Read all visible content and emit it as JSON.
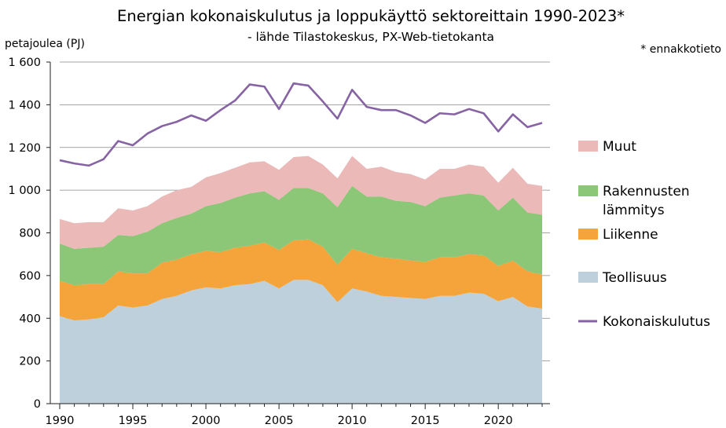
{
  "chart_data": {
    "type": "area",
    "title": "Energian kokonaiskulutus ja loppukäyttö sektoreittain 1990-2023*",
    "subtitle": "- lähde Tilastokeskus, PX-Web-tietokanta",
    "ylabel": "petajoulea (PJ)",
    "note": "* ennakkotieto",
    "ylim": [
      0,
      1600
    ],
    "xlim": [
      1990,
      2023
    ],
    "y_ticks": [
      "0",
      "200",
      "400",
      "600",
      "800",
      "1 000",
      "1 200",
      "1 400",
      "1 600"
    ],
    "y_tick_values": [
      0,
      200,
      400,
      600,
      800,
      1000,
      1200,
      1400,
      1600
    ],
    "x_ticks": [
      "1990",
      "1995",
      "2000",
      "2005",
      "2010",
      "2015",
      "2020"
    ],
    "x_tick_values": [
      1990,
      1995,
      2000,
      2005,
      2010,
      2015,
      2020
    ],
    "grid": true,
    "legend_position": "right",
    "x": [
      1990,
      1991,
      1992,
      1993,
      1994,
      1995,
      1996,
      1997,
      1998,
      1999,
      2000,
      2001,
      2002,
      2003,
      2004,
      2005,
      2006,
      2007,
      2008,
      2009,
      2010,
      2011,
      2012,
      2013,
      2014,
      2015,
      2016,
      2017,
      2018,
      2019,
      2020,
      2021,
      2022,
      2023
    ],
    "stacked_series": [
      {
        "name": "Teollisuus",
        "color": "#bdd0dc",
        "values": [
          410,
          390,
          395,
          405,
          460,
          450,
          460,
          490,
          505,
          530,
          545,
          540,
          555,
          560,
          575,
          540,
          580,
          580,
          555,
          475,
          540,
          525,
          505,
          500,
          495,
          490,
          505,
          505,
          520,
          515,
          480,
          500,
          455,
          445
        ]
      },
      {
        "name": "Liikenne",
        "color": "#f4a43a",
        "values": [
          165,
          165,
          165,
          155,
          160,
          160,
          150,
          170,
          170,
          170,
          170,
          170,
          175,
          180,
          180,
          180,
          185,
          190,
          180,
          175,
          185,
          180,
          180,
          180,
          175,
          175,
          180,
          180,
          180,
          180,
          165,
          170,
          165,
          160
        ]
      },
      {
        "name": "Rakennusten lämmitys",
        "color": "#8cc677",
        "values": [
          175,
          170,
          170,
          175,
          170,
          175,
          195,
          185,
          195,
          190,
          210,
          230,
          235,
          245,
          240,
          235,
          245,
          240,
          250,
          270,
          295,
          265,
          285,
          270,
          275,
          260,
          280,
          290,
          285,
          280,
          260,
          295,
          275,
          280
        ]
      },
      {
        "name": "Muut",
        "color": "#ebb9b7",
        "values": [
          115,
          120,
          120,
          115,
          125,
          120,
          120,
          125,
          130,
          125,
          135,
          140,
          140,
          145,
          140,
          140,
          145,
          150,
          135,
          135,
          140,
          130,
          140,
          135,
          130,
          125,
          135,
          125,
          135,
          135,
          130,
          140,
          135,
          135
        ]
      }
    ],
    "line_series": {
      "name": "Kokonaiskulutus",
      "color": "#8663a3",
      "values": [
        1140,
        1125,
        1115,
        1145,
        1230,
        1210,
        1265,
        1300,
        1320,
        1350,
        1325,
        1375,
        1420,
        1495,
        1485,
        1380,
        1500,
        1490,
        1415,
        1335,
        1470,
        1390,
        1375,
        1375,
        1350,
        1315,
        1360,
        1355,
        1380,
        1360,
        1275,
        1355,
        1295,
        1315
      ]
    }
  },
  "legend": [
    {
      "label": "Muut",
      "color": "#ebb9b7",
      "kind": "area"
    },
    {
      "label": "Rakennusten",
      "label2": "lämmitys",
      "color": "#8cc677",
      "kind": "area"
    },
    {
      "label": "Liikenne",
      "color": "#f4a43a",
      "kind": "area"
    },
    {
      "label": "Teollisuus",
      "color": "#bdd0dc",
      "kind": "area"
    },
    {
      "label": "Kokonaiskulutus",
      "color": "#8663a3",
      "kind": "line"
    }
  ]
}
